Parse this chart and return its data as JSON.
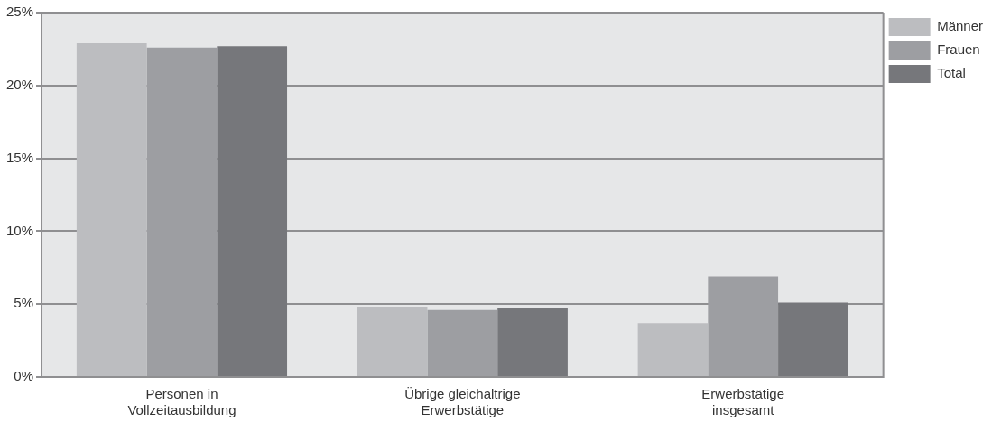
{
  "chart_data": {
    "type": "bar",
    "categories": [
      "Personen in Vollzeitausbildung",
      "Übrige gleichaltrige Erwerbstätige",
      "Erwerbstätige insgesamt"
    ],
    "series": [
      {
        "name": "Männer",
        "color": "#bcbdc0",
        "values": [
          22.9,
          4.8,
          3.7
        ]
      },
      {
        "name": "Frauen",
        "color": "#9d9ea2",
        "values": [
          22.6,
          4.6,
          6.9
        ]
      },
      {
        "name": "Total",
        "color": "#76777b",
        "values": [
          22.7,
          4.7,
          5.1
        ]
      }
    ],
    "ylim": [
      0,
      25
    ],
    "yticks": [
      {
        "value": 0,
        "label": "0%"
      },
      {
        "value": 5,
        "label": "5%"
      },
      {
        "value": 10,
        "label": "10%"
      },
      {
        "value": 15,
        "label": "15%"
      },
      {
        "value": 20,
        "label": "20%"
      },
      {
        "value": 25,
        "label": "25%"
      }
    ],
    "grid": "y",
    "legend": "top right"
  }
}
